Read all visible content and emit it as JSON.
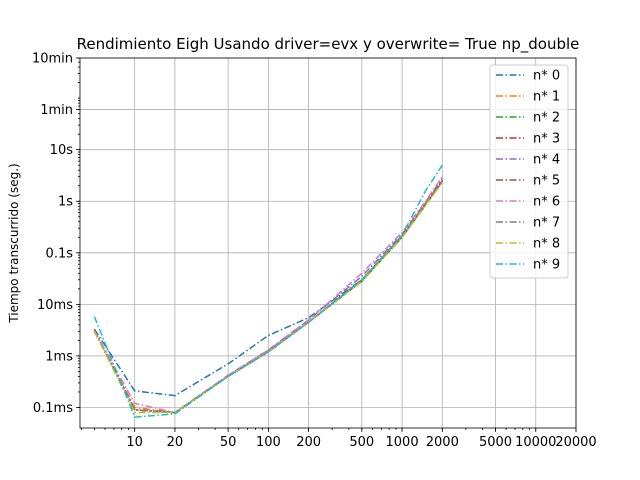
{
  "chart_data": {
    "type": "line",
    "title": "Rendimiento   Eigh Usando driver=evx y overwrite= True np_double",
    "xlabel": "",
    "ylabel": "Tiempo transcurrido (seg.)",
    "xscale": "log",
    "yscale": "log",
    "xlim": [
      3.9,
      20000
    ],
    "ylim": [
      4e-05,
      600
    ],
    "grid": true,
    "legend_position": "top-right",
    "x_ticks": [
      {
        "value": 10,
        "label": "10"
      },
      {
        "value": 20,
        "label": "20"
      },
      {
        "value": 50,
        "label": "50"
      },
      {
        "value": 100,
        "label": "100"
      },
      {
        "value": 200,
        "label": "200"
      },
      {
        "value": 500,
        "label": "500"
      },
      {
        "value": 1000,
        "label": "1000"
      },
      {
        "value": 2000,
        "label": "2000"
      },
      {
        "value": 5000,
        "label": "5000"
      },
      {
        "value": 10000,
        "label": "10000"
      },
      {
        "value": 20000,
        "label": "20000"
      }
    ],
    "y_ticks": [
      {
        "value": 0.0001,
        "label": "0.1ms"
      },
      {
        "value": 0.001,
        "label": "1ms"
      },
      {
        "value": 0.01,
        "label": "10ms"
      },
      {
        "value": 0.1,
        "label": "0.1s"
      },
      {
        "value": 1,
        "label": "1s"
      },
      {
        "value": 10,
        "label": "10s"
      },
      {
        "value": 60,
        "label": "1min"
      },
      {
        "value": 600,
        "label": "10min"
      }
    ],
    "x": [
      5,
      10,
      20,
      50,
      100,
      200,
      500,
      1000,
      1500,
      2000
    ],
    "series": [
      {
        "name": "n* 0",
        "color": "#1f77b4",
        "values": [
          0.0033,
          0.00021,
          0.00017,
          0.0007,
          0.0025,
          0.0055,
          0.03,
          0.21,
          0.9,
          2.5
        ]
      },
      {
        "name": "n* 1",
        "color": "#ff7f0e",
        "values": [
          0.003,
          0.0001,
          8e-05,
          0.0004,
          0.0013,
          0.0045,
          0.028,
          0.2,
          0.85,
          2.4
        ]
      },
      {
        "name": "n* 2",
        "color": "#2ca02c",
        "values": [
          0.003,
          9e-05,
          8e-05,
          0.0004,
          0.0012,
          0.0045,
          0.028,
          0.2,
          0.85,
          2.4
        ]
      },
      {
        "name": "n* 3",
        "color": "#d62728",
        "values": [
          0.0032,
          9e-05,
          8e-05,
          0.0004,
          0.0012,
          0.0045,
          0.03,
          0.21,
          0.9,
          2.5
        ]
      },
      {
        "name": "n* 4",
        "color": "#9467bd",
        "values": [
          0.0031,
          9e-05,
          8e-05,
          0.00042,
          0.0013,
          0.005,
          0.035,
          0.23,
          0.95,
          2.8
        ]
      },
      {
        "name": "n* 5",
        "color": "#8c564b",
        "values": [
          0.003,
          9e-05,
          8e-05,
          0.0004,
          0.0012,
          0.0045,
          0.03,
          0.21,
          0.9,
          2.6
        ]
      },
      {
        "name": "n* 6",
        "color": "#e377c2",
        "values": [
          0.0031,
          0.00012,
          8e-05,
          0.00042,
          0.0013,
          0.005,
          0.04,
          0.25,
          1.0,
          3.0
        ]
      },
      {
        "name": "n* 7",
        "color": "#7f7f7f",
        "values": [
          0.003,
          9e-05,
          8e-05,
          0.0004,
          0.0012,
          0.0045,
          0.03,
          0.21,
          0.9,
          2.6
        ]
      },
      {
        "name": "n* 8",
        "color": "#bcbd22",
        "values": [
          0.003,
          8e-05,
          8e-05,
          0.0004,
          0.0012,
          0.0045,
          0.028,
          0.2,
          0.85,
          2.3
        ]
      },
      {
        "name": "n* 9",
        "color": "#17becf",
        "values": [
          0.0058,
          6.5e-05,
          7.5e-05,
          0.0004,
          0.0012,
          0.0045,
          0.03,
          0.22,
          1.6,
          5.0
        ]
      }
    ]
  }
}
